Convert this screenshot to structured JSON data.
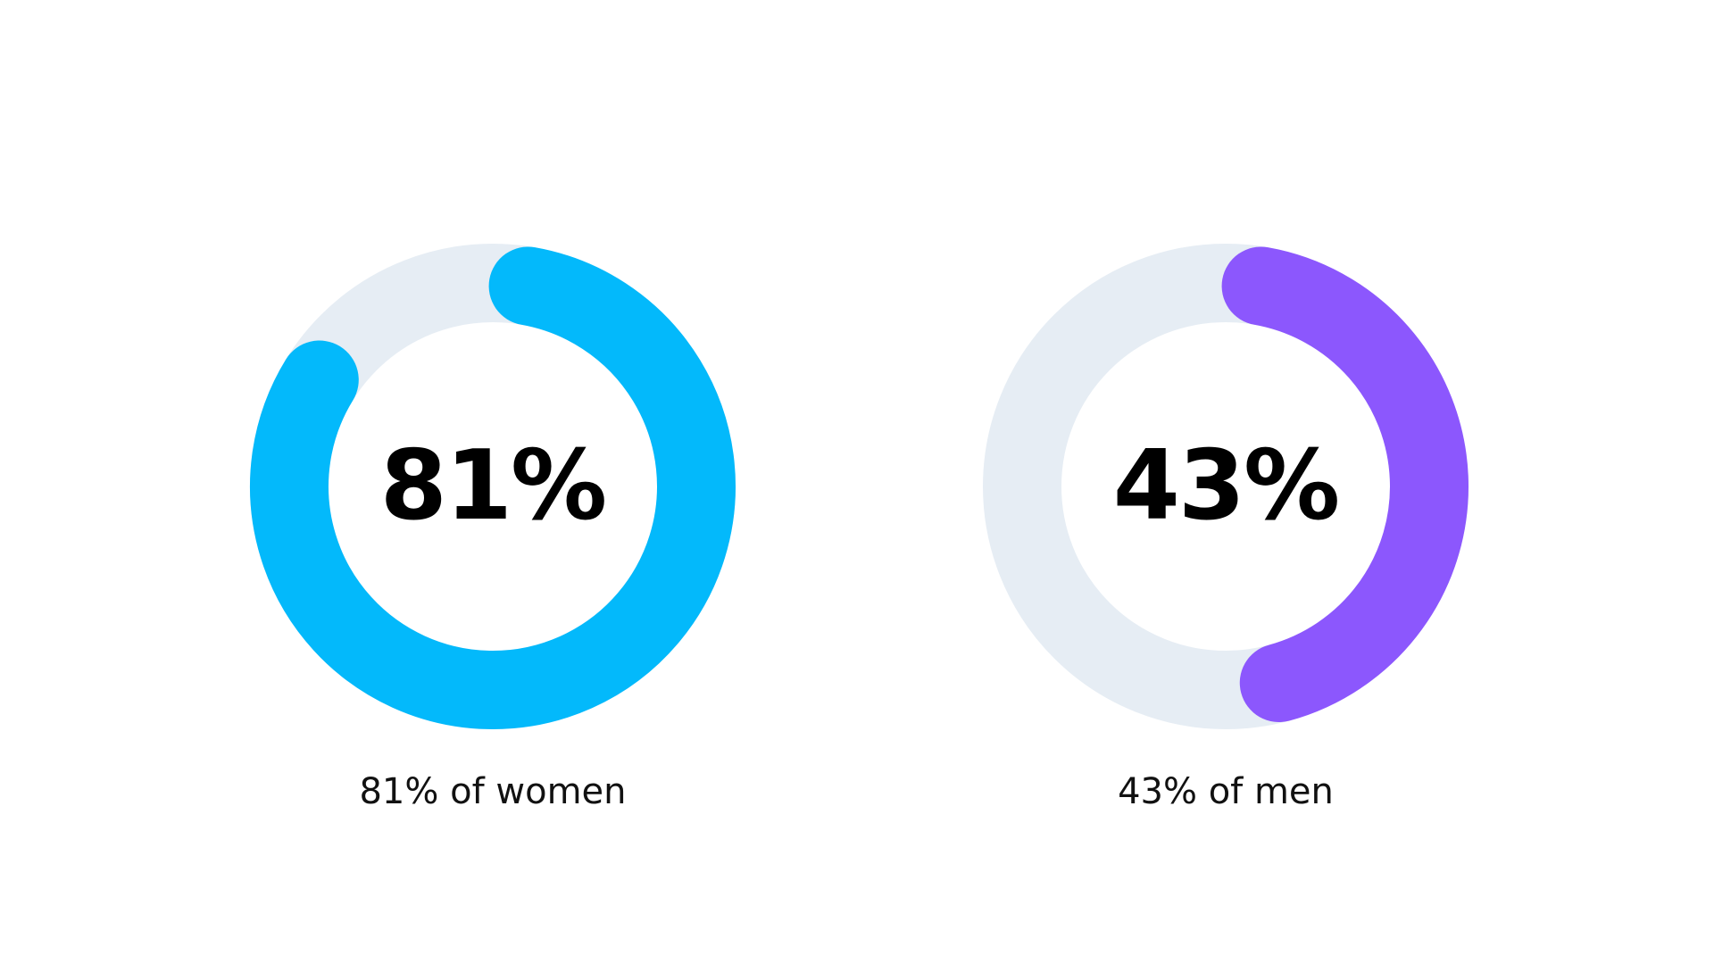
{
  "chart_data": {
    "type": "pie",
    "track_color": "#e6edf4",
    "charts": [
      {
        "value": 81,
        "max": 100,
        "center_label": "81%",
        "caption": "81% of women",
        "color": "#03b9fb"
      },
      {
        "value": 43,
        "max": 100,
        "center_label": "43%",
        "caption": "43% of men",
        "color": "#8c57fd"
      }
    ]
  }
}
